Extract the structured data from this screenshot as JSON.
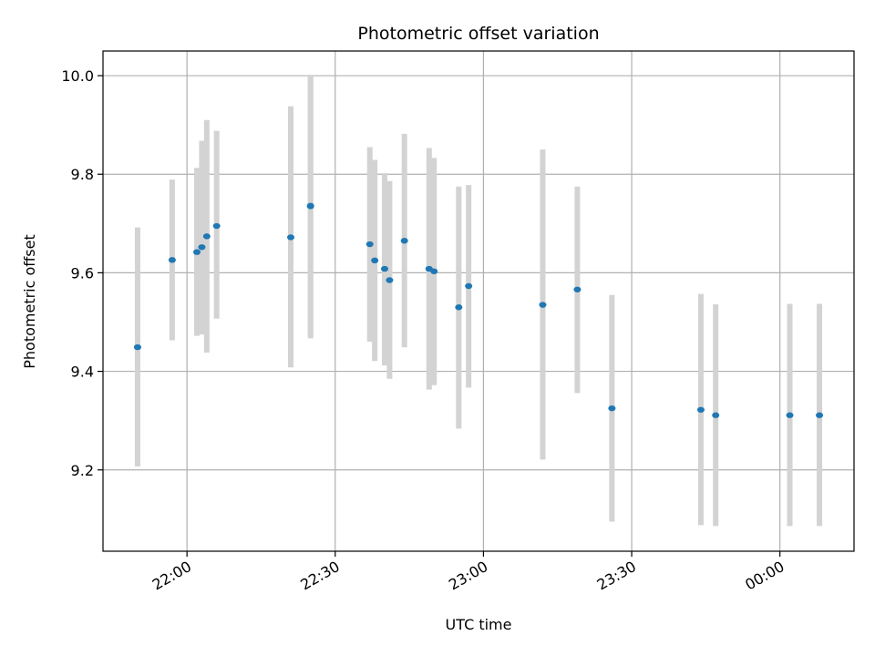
{
  "chart_data": {
    "type": "scatter",
    "title": "Photometric offset variation",
    "xlabel": "UTC time",
    "ylabel": "Photometric offset",
    "x_axis": "time",
    "xlim": [
      "21:43",
      "00:15"
    ],
    "ylim": [
      9.035,
      10.05
    ],
    "x_ticks": [
      {
        "time": "22:00",
        "label": "22:00"
      },
      {
        "time": "22:30",
        "label": "22:30"
      },
      {
        "time": "23:00",
        "label": "23:00"
      },
      {
        "time": "23:30",
        "label": "23:30"
      },
      {
        "time": "00:00",
        "label": "00:00"
      }
    ],
    "y_ticks": [
      9.2,
      9.4,
      9.6,
      9.8,
      10.0
    ],
    "y_tick_labels": [
      "9.2",
      "9.4",
      "9.6",
      "9.8",
      "10.0"
    ],
    "grid": true,
    "colors": {
      "point": "#1f77b4",
      "errorbar": "#d3d3d3",
      "grid": "#b0b0b0"
    },
    "points": [
      {
        "time": "21:50",
        "y": 9.449,
        "err_lo": 9.207,
        "err_hi": 9.692
      },
      {
        "time": "21:57",
        "y": 9.626,
        "err_lo": 9.463,
        "err_hi": 9.789
      },
      {
        "time": "22:02",
        "y": 9.642,
        "err_lo": 9.472,
        "err_hi": 9.813
      },
      {
        "time": "22:03",
        "y": 9.652,
        "err_lo": 9.475,
        "err_hi": 9.868
      },
      {
        "time": "22:04",
        "y": 9.674,
        "err_lo": 9.438,
        "err_hi": 9.91
      },
      {
        "time": "22:06",
        "y": 9.695,
        "err_lo": 9.507,
        "err_hi": 9.888
      },
      {
        "time": "22:21",
        "y": 9.672,
        "err_lo": 9.408,
        "err_hi": 9.938
      },
      {
        "time": "22:25",
        "y": 9.736,
        "err_lo": 9.472,
        "err_hi": 10.0
      },
      {
        "time": "22:25",
        "y": 9.735,
        "err_lo": 9.467,
        "err_hi": 10.0
      },
      {
        "time": "22:37",
        "y": 9.658,
        "err_lo": 9.46,
        "err_hi": 9.855
      },
      {
        "time": "22:38",
        "y": 9.625,
        "err_lo": 9.421,
        "err_hi": 9.829
      },
      {
        "time": "22:40",
        "y": 9.608,
        "err_lo": 9.412,
        "err_hi": 9.802
      },
      {
        "time": "22:41",
        "y": 9.585,
        "err_lo": 9.385,
        "err_hi": 9.786
      },
      {
        "time": "22:44",
        "y": 9.665,
        "err_lo": 9.449,
        "err_hi": 9.882
      },
      {
        "time": "22:49",
        "y": 9.608,
        "err_lo": 9.363,
        "err_hi": 9.853
      },
      {
        "time": "22:50",
        "y": 9.603,
        "err_lo": 9.372,
        "err_hi": 9.833
      },
      {
        "time": "22:55",
        "y": 9.53,
        "err_lo": 9.284,
        "err_hi": 9.775
      },
      {
        "time": "22:57",
        "y": 9.573,
        "err_lo": 9.367,
        "err_hi": 9.778
      },
      {
        "time": "23:12",
        "y": 9.535,
        "err_lo": 9.221,
        "err_hi": 9.85
      },
      {
        "time": "23:19",
        "y": 9.566,
        "err_lo": 9.356,
        "err_hi": 9.775
      },
      {
        "time": "23:26",
        "y": 9.325,
        "err_lo": 9.095,
        "err_hi": 9.555
      },
      {
        "time": "23:44",
        "y": 9.322,
        "err_lo": 9.088,
        "err_hi": 9.557
      },
      {
        "time": "23:47",
        "y": 9.311,
        "err_lo": 9.086,
        "err_hi": 9.536
      },
      {
        "time": "00:02",
        "y": 9.311,
        "err_lo": 9.086,
        "err_hi": 9.537
      },
      {
        "time": "00:08",
        "y": 9.311,
        "err_lo": 9.086,
        "err_hi": 9.537
      }
    ]
  }
}
